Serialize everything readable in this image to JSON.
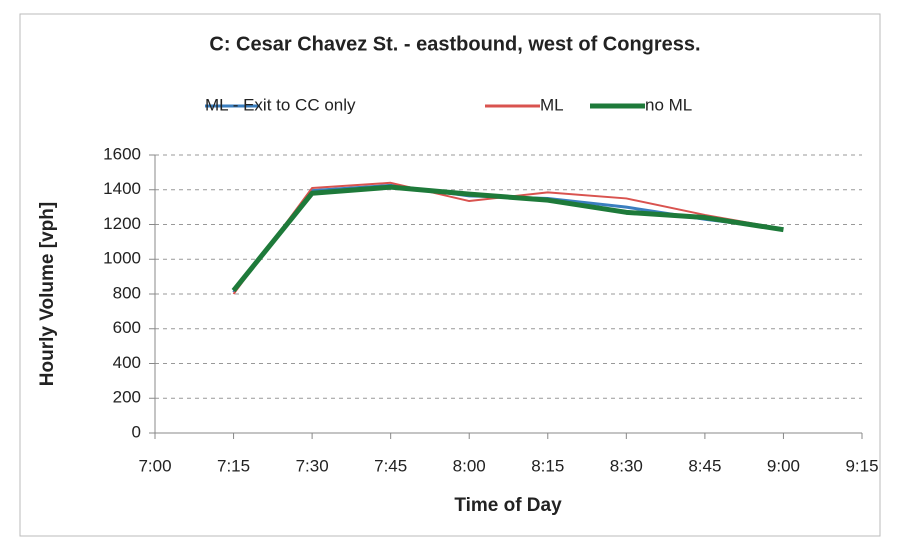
{
  "chart_data": {
    "type": "line",
    "title": "C: Cesar Chavez St. - eastbound, west of Congress.",
    "x_label": "Time of Day",
    "y_label": "Hourly Volume [vph]",
    "categories": [
      "7:00",
      "7:15",
      "7:30",
      "7:45",
      "8:00",
      "8:15",
      "8:30",
      "8:45",
      "9:00",
      "9:15"
    ],
    "series": [
      {
        "name": "ML - Exit to CC only",
        "color": "#3a7ebf",
        "width": 3,
        "values": [
          null,
          810,
          1395,
          1425,
          1365,
          1350,
          1300,
          1230,
          1175,
          null
        ]
      },
      {
        "name": "ML",
        "color": "#d9534f",
        "width": 2,
        "values": [
          null,
          800,
          1410,
          1440,
          1335,
          1385,
          1350,
          1255,
          1175,
          null
        ]
      },
      {
        "name": "no ML",
        "color": "#1e7a3a",
        "width": 5,
        "values": [
          null,
          820,
          1380,
          1415,
          1375,
          1340,
          1270,
          1240,
          1170,
          null
        ]
      }
    ],
    "ylim": [
      0,
      1600
    ],
    "yticks": [
      0,
      200,
      400,
      600,
      800,
      1000,
      1200,
      1400,
      1600
    ],
    "grid": true
  }
}
